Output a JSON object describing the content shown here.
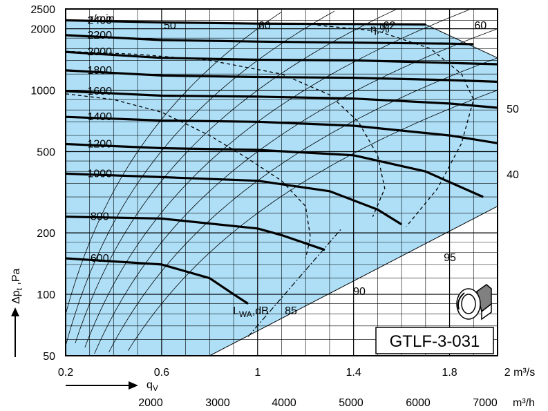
{
  "chart_data": {
    "type": "line",
    "model": "GTLF-3-031",
    "xlabel_main": "q",
    "xlabel_sub": "V",
    "ylabel_main": "Δp",
    "ylabel_sub": "t",
    "ylabel_unit": " ,Pa",
    "unit_m3s": "2 m³/s",
    "unit_m3h": "m³/h",
    "xlim": [
      0.2,
      2.0
    ],
    "ylim": [
      50,
      2500
    ],
    "y_scale": "log",
    "x_ticks": [
      "0.2",
      "0.6",
      "1",
      "1.4",
      "1.8"
    ],
    "x_tick_values": [
      0.2,
      0.6,
      1.0,
      1.4,
      1.8
    ],
    "x2_ticks": [
      "2000",
      "3000",
      "4000",
      "5000",
      "6000",
      "7000"
    ],
    "x2_tick_values": [
      2000,
      3000,
      4000,
      5000,
      6000,
      7000
    ],
    "y_ticks": [
      "50",
      "100",
      "200",
      "500",
      "1000",
      "2000",
      "2500"
    ],
    "y_tick_values": [
      50,
      100,
      200,
      500,
      1000,
      2000,
      2500
    ],
    "rpm_unit": "r/min",
    "eff_unit": "η,%",
    "sound_unit_main": "L",
    "sound_unit_sub": "WA",
    "sound_unit_rest": ",dB",
    "rpm_curves": [
      {
        "rpm": "2400",
        "points": [
          [
            0.2,
            2200
          ],
          [
            0.6,
            2150
          ],
          [
            1.0,
            2120
          ],
          [
            1.4,
            2110
          ],
          [
            1.7,
            2100
          ]
        ]
      },
      {
        "rpm": "2200",
        "points": [
          [
            0.2,
            1860
          ],
          [
            0.6,
            1760
          ],
          [
            1.0,
            1730
          ],
          [
            1.4,
            1710
          ],
          [
            1.8,
            1690
          ],
          [
            1.9,
            1680
          ]
        ]
      },
      {
        "rpm": "2000",
        "points": [
          [
            0.2,
            1540
          ],
          [
            0.6,
            1440
          ],
          [
            1.0,
            1410
          ],
          [
            1.4,
            1400
          ],
          [
            1.8,
            1360
          ],
          [
            2.0,
            1340
          ]
        ]
      },
      {
        "rpm": "1800",
        "points": [
          [
            0.2,
            1250
          ],
          [
            0.6,
            1180
          ],
          [
            1.0,
            1160
          ],
          [
            1.4,
            1150
          ],
          [
            1.8,
            1120
          ],
          [
            2.0,
            1100
          ]
        ]
      },
      {
        "rpm": "1600",
        "points": [
          [
            0.2,
            990
          ],
          [
            0.6,
            940
          ],
          [
            1.0,
            930
          ],
          [
            1.4,
            910
          ],
          [
            1.8,
            860
          ],
          [
            2.0,
            820
          ]
        ]
      },
      {
        "rpm": "1400",
        "points": [
          [
            0.2,
            740
          ],
          [
            0.6,
            710
          ],
          [
            1.0,
            700
          ],
          [
            1.4,
            670
          ],
          [
            1.8,
            600
          ],
          [
            2.0,
            550
          ]
        ]
      },
      {
        "rpm": "1200",
        "points": [
          [
            0.2,
            545
          ],
          [
            0.6,
            520
          ],
          [
            1.0,
            510
          ],
          [
            1.4,
            480
          ],
          [
            1.7,
            400
          ],
          [
            1.94,
            300
          ]
        ]
      },
      {
        "rpm": "1000",
        "points": [
          [
            0.2,
            390
          ],
          [
            0.6,
            375
          ],
          [
            1.0,
            360
          ],
          [
            1.3,
            320
          ],
          [
            1.5,
            260
          ],
          [
            1.6,
            220
          ]
        ]
      },
      {
        "rpm": "800",
        "points": [
          [
            0.2,
            240
          ],
          [
            0.6,
            235
          ],
          [
            1.0,
            210
          ],
          [
            1.1,
            195
          ],
          [
            1.28,
            165
          ]
        ]
      },
      {
        "rpm": "600",
        "points": [
          [
            0.2,
            150
          ],
          [
            0.6,
            140
          ],
          [
            0.8,
            120
          ],
          [
            0.9,
            100
          ],
          [
            0.96,
            90
          ]
        ]
      }
    ],
    "efficiency_lines": [
      "50",
      "60",
      "62",
      "60",
      "50",
      "40"
    ],
    "sound_levels": [
      "85",
      "90",
      "95"
    ],
    "legend": "none",
    "grid": true,
    "colors": {
      "fill": "#AEDFF7",
      "curve": "#000000",
      "grid": "#000000"
    }
  }
}
